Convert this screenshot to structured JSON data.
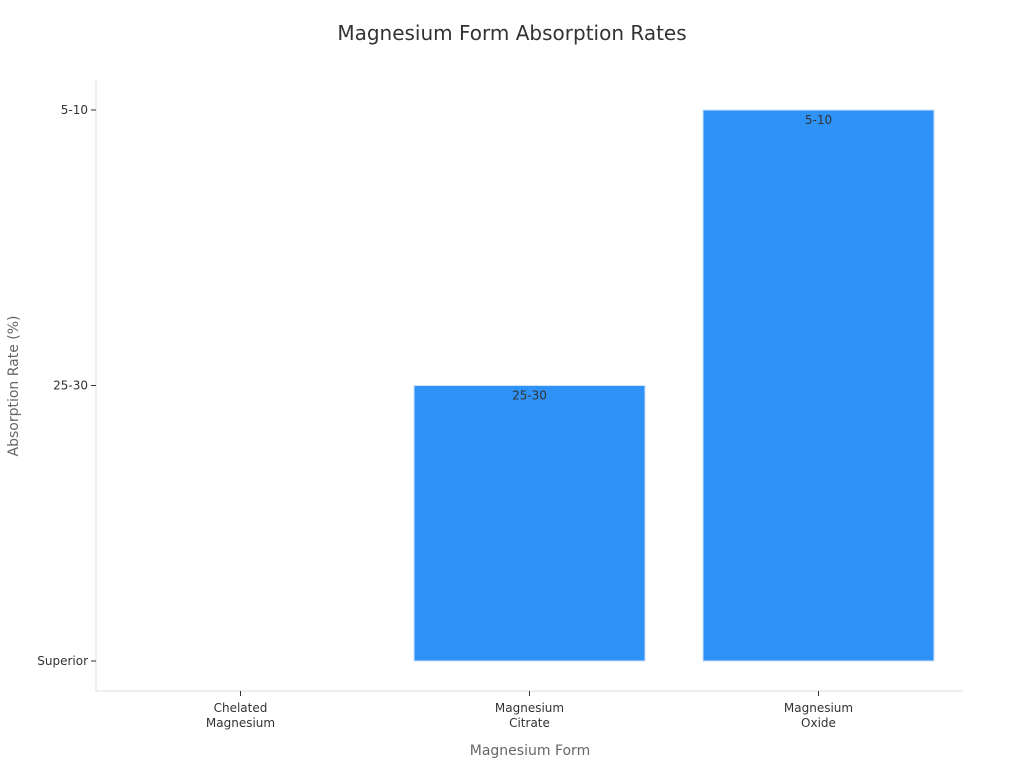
{
  "chart_data": {
    "type": "bar",
    "title": "Magnesium Form Absorption Rates",
    "xlabel": "Magnesium Form",
    "ylabel": "Absorption Rate (%)",
    "y_scale": "categorical",
    "y_categories": [
      "Superior",
      "25-30",
      "5-10"
    ],
    "categories": [
      [
        "Chelated",
        "Magnesium"
      ],
      [
        "Magnesium",
        "Citrate"
      ],
      [
        "Magnesium",
        "Oxide"
      ]
    ],
    "values": [
      "Superior",
      "25-30",
      "5-10"
    ],
    "data_labels": [
      "",
      "25-30",
      "5-10"
    ],
    "bar_color": "#2e92f7",
    "grid": false,
    "legend": "none"
  }
}
